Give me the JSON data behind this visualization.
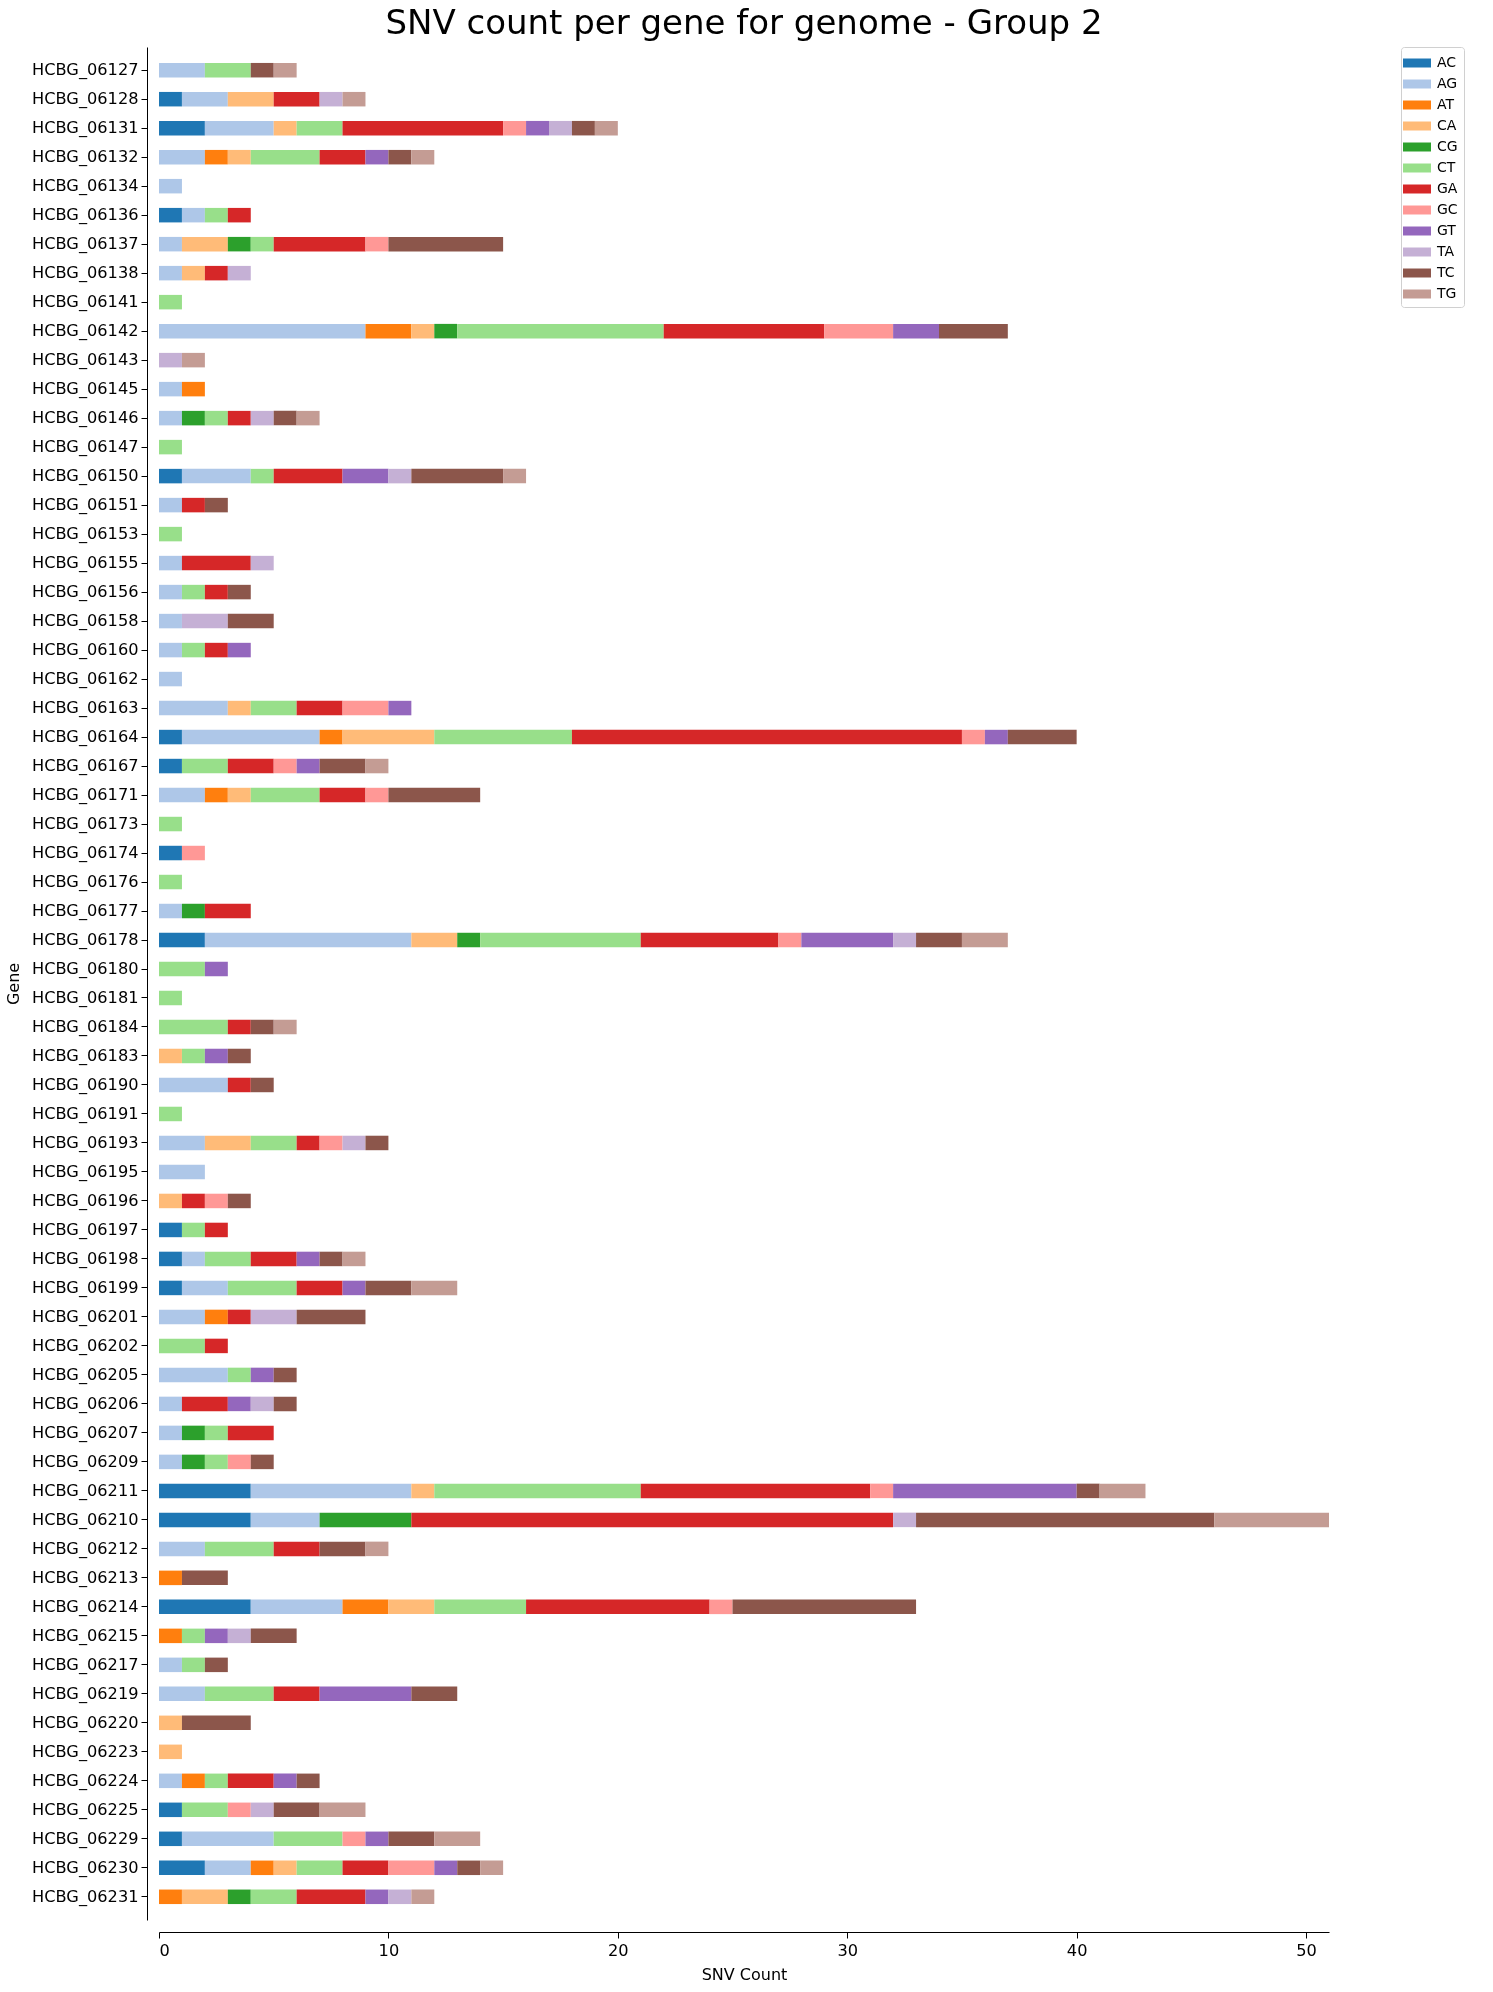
{
  "chart_data": {
    "type": "bar",
    "orientation": "horizontal",
    "stacked": true,
    "title": "SNV count per gene for genome - Group 2",
    "xlabel": "SNV Count",
    "ylabel": "Gene",
    "categories": [
      "HCBG_06127",
      "HCBG_06128",
      "HCBG_06131",
      "HCBG_06132",
      "HCBG_06134",
      "HCBG_06136",
      "HCBG_06137",
      "HCBG_06138",
      "HCBG_06141",
      "HCBG_06142",
      "HCBG_06143",
      "HCBG_06145",
      "HCBG_06146",
      "HCBG_06147",
      "HCBG_06150",
      "HCBG_06151",
      "HCBG_06153",
      "HCBG_06155",
      "HCBG_06156",
      "HCBG_06158",
      "HCBG_06160",
      "HCBG_06162",
      "HCBG_06163",
      "HCBG_06164",
      "HCBG_06167",
      "HCBG_06171",
      "HCBG_06173",
      "HCBG_06174",
      "HCBG_06176",
      "HCBG_06177",
      "HCBG_06178",
      "HCBG_06180",
      "HCBG_06181",
      "HCBG_06184",
      "HCBG_06183",
      "HCBG_06190",
      "HCBG_06191",
      "HCBG_06193",
      "HCBG_06195",
      "HCBG_06196",
      "HCBG_06197",
      "HCBG_06198",
      "HCBG_06199",
      "HCBG_06201",
      "HCBG_06202",
      "HCBG_06205",
      "HCBG_06206",
      "HCBG_06207",
      "HCBG_06209",
      "HCBG_06211",
      "HCBG_06210",
      "HCBG_06212",
      "HCBG_06213",
      "HCBG_06214",
      "HCBG_06215",
      "HCBG_06217",
      "HCBG_06219",
      "HCBG_06220",
      "HCBG_06223",
      "HCBG_06224",
      "HCBG_06225",
      "HCBG_06229",
      "HCBG_06230",
      "HCBG_06231"
    ],
    "series": [
      {
        "name": "AC",
        "color": "#1f77b4",
        "values": [
          null,
          1,
          2,
          null,
          null,
          1,
          null,
          null,
          null,
          null,
          null,
          null,
          null,
          null,
          1,
          null,
          null,
          null,
          null,
          null,
          null,
          null,
          null,
          1,
          1,
          null,
          null,
          1,
          null,
          null,
          2,
          null,
          null,
          null,
          null,
          null,
          null,
          null,
          null,
          null,
          1,
          1,
          1,
          null,
          null,
          null,
          null,
          null,
          null,
          4,
          4,
          null,
          null,
          4,
          null,
          null,
          null,
          null,
          null,
          null,
          1,
          1,
          2,
          null
        ]
      },
      {
        "name": "AG",
        "color": "#aec7e8",
        "values": [
          2,
          2,
          3,
          2,
          1,
          1,
          1,
          1,
          null,
          9,
          null,
          1,
          1,
          null,
          3,
          1,
          null,
          1,
          1,
          1,
          1,
          1,
          3,
          6,
          null,
          2,
          null,
          null,
          null,
          1,
          9,
          null,
          null,
          null,
          null,
          3,
          null,
          2,
          2,
          null,
          null,
          1,
          2,
          2,
          null,
          3,
          1,
          1,
          1,
          7,
          3,
          2,
          null,
          4,
          null,
          1,
          2,
          null,
          null,
          1,
          null,
          4,
          2,
          null
        ]
      },
      {
        "name": "AT",
        "color": "#ff7f0e",
        "values": [
          null,
          null,
          null,
          1,
          null,
          null,
          null,
          null,
          null,
          2,
          null,
          1,
          null,
          null,
          null,
          null,
          null,
          null,
          null,
          null,
          null,
          null,
          null,
          1,
          null,
          1,
          null,
          null,
          null,
          null,
          null,
          null,
          null,
          null,
          null,
          null,
          null,
          null,
          null,
          null,
          null,
          null,
          null,
          1,
          null,
          null,
          null,
          null,
          null,
          null,
          null,
          null,
          1,
          2,
          1,
          null,
          null,
          null,
          null,
          1,
          null,
          null,
          1,
          1
        ]
      },
      {
        "name": "CA",
        "color": "#ffbb78",
        "values": [
          null,
          2,
          1,
          1,
          null,
          null,
          2,
          1,
          null,
          1,
          null,
          null,
          null,
          null,
          null,
          null,
          null,
          null,
          null,
          null,
          null,
          null,
          1,
          4,
          null,
          1,
          null,
          null,
          null,
          null,
          2,
          null,
          null,
          null,
          1,
          null,
          null,
          2,
          null,
          1,
          null,
          null,
          null,
          null,
          null,
          null,
          null,
          null,
          null,
          1,
          null,
          null,
          null,
          2,
          null,
          null,
          null,
          1,
          1,
          null,
          null,
          null,
          1,
          2
        ]
      },
      {
        "name": "CG",
        "color": "#2ca02c",
        "values": [
          null,
          null,
          null,
          null,
          null,
          null,
          1,
          null,
          null,
          1,
          null,
          null,
          1,
          null,
          null,
          null,
          null,
          null,
          null,
          null,
          null,
          null,
          null,
          null,
          null,
          null,
          null,
          null,
          null,
          1,
          1,
          null,
          null,
          null,
          null,
          null,
          null,
          null,
          null,
          null,
          null,
          null,
          null,
          null,
          null,
          null,
          null,
          1,
          1,
          null,
          4,
          null,
          null,
          null,
          null,
          null,
          null,
          null,
          null,
          null,
          null,
          null,
          null,
          1
        ]
      },
      {
        "name": "CT",
        "color": "#98df8a",
        "values": [
          2,
          null,
          2,
          3,
          null,
          1,
          1,
          null,
          1,
          9,
          null,
          null,
          1,
          1,
          1,
          null,
          1,
          null,
          1,
          null,
          1,
          null,
          2,
          6,
          2,
          3,
          1,
          null,
          1,
          null,
          7,
          2,
          1,
          3,
          1,
          null,
          1,
          2,
          null,
          null,
          1,
          2,
          3,
          null,
          2,
          1,
          null,
          1,
          1,
          9,
          null,
          3,
          null,
          4,
          1,
          1,
          3,
          null,
          null,
          1,
          2,
          3,
          2,
          2
        ]
      },
      {
        "name": "GA",
        "color": "#d62728",
        "values": [
          null,
          2,
          7,
          2,
          null,
          1,
          4,
          1,
          null,
          7,
          null,
          null,
          1,
          null,
          3,
          1,
          null,
          3,
          1,
          null,
          1,
          null,
          2,
          17,
          2,
          2,
          null,
          null,
          null,
          2,
          6,
          null,
          null,
          1,
          null,
          1,
          null,
          1,
          null,
          1,
          1,
          2,
          2,
          1,
          1,
          null,
          2,
          2,
          null,
          10,
          21,
          2,
          null,
          8,
          null,
          null,
          2,
          null,
          null,
          2,
          null,
          null,
          2,
          3
        ]
      },
      {
        "name": "GC",
        "color": "#ff9896",
        "values": [
          null,
          null,
          1,
          null,
          null,
          null,
          1,
          null,
          null,
          3,
          null,
          null,
          null,
          null,
          null,
          null,
          null,
          null,
          null,
          null,
          null,
          null,
          2,
          1,
          1,
          1,
          null,
          1,
          null,
          null,
          1,
          null,
          null,
          null,
          null,
          null,
          null,
          1,
          null,
          1,
          null,
          null,
          null,
          null,
          null,
          null,
          null,
          null,
          1,
          1,
          null,
          null,
          null,
          1,
          null,
          null,
          null,
          null,
          null,
          null,
          1,
          1,
          2,
          null
        ]
      },
      {
        "name": "GT",
        "color": "#9467bd",
        "values": [
          null,
          null,
          1,
          1,
          null,
          null,
          null,
          null,
          null,
          2,
          null,
          null,
          null,
          null,
          2,
          null,
          null,
          null,
          null,
          null,
          1,
          null,
          1,
          1,
          1,
          null,
          null,
          null,
          null,
          null,
          4,
          1,
          null,
          null,
          1,
          null,
          null,
          null,
          null,
          null,
          null,
          1,
          1,
          null,
          null,
          1,
          1,
          null,
          null,
          8,
          null,
          null,
          null,
          null,
          1,
          null,
          4,
          null,
          null,
          1,
          null,
          1,
          1,
          1
        ]
      },
      {
        "name": "TA",
        "color": "#c5b0d5",
        "values": [
          null,
          1,
          1,
          null,
          null,
          null,
          null,
          1,
          null,
          null,
          1,
          null,
          1,
          null,
          1,
          null,
          null,
          1,
          null,
          2,
          null,
          null,
          null,
          null,
          null,
          null,
          null,
          null,
          null,
          null,
          1,
          null,
          null,
          null,
          null,
          null,
          null,
          1,
          null,
          null,
          null,
          null,
          null,
          2,
          null,
          null,
          1,
          null,
          null,
          null,
          1,
          null,
          null,
          null,
          1,
          null,
          null,
          null,
          null,
          null,
          1,
          null,
          null,
          1
        ]
      },
      {
        "name": "TC",
        "color": "#8c564b",
        "values": [
          1,
          null,
          1,
          1,
          null,
          null,
          5,
          null,
          null,
          3,
          null,
          null,
          1,
          null,
          4,
          1,
          null,
          null,
          1,
          2,
          null,
          null,
          null,
          3,
          2,
          4,
          null,
          null,
          null,
          null,
          2,
          null,
          null,
          1,
          1,
          1,
          null,
          1,
          null,
          1,
          null,
          1,
          2,
          3,
          null,
          1,
          1,
          null,
          1,
          1,
          13,
          2,
          2,
          8,
          2,
          1,
          2,
          3,
          null,
          1,
          2,
          2,
          1,
          null
        ]
      },
      {
        "name": "TG",
        "color": "#c49c94",
        "values": [
          1,
          1,
          1,
          1,
          null,
          null,
          null,
          null,
          null,
          null,
          1,
          null,
          1,
          null,
          1,
          null,
          null,
          null,
          null,
          null,
          null,
          null,
          null,
          null,
          1,
          null,
          null,
          null,
          null,
          null,
          2,
          null,
          null,
          1,
          null,
          null,
          null,
          null,
          null,
          null,
          null,
          1,
          2,
          null,
          null,
          null,
          null,
          null,
          null,
          2,
          5,
          1,
          null,
          null,
          null,
          null,
          null,
          null,
          null,
          null,
          2,
          2,
          1,
          1
        ]
      }
    ],
    "xlim": [
      0,
      51
    ],
    "xticks": [
      0,
      10,
      20,
      30,
      40,
      50
    ],
    "grid": false,
    "legend": "top right"
  }
}
